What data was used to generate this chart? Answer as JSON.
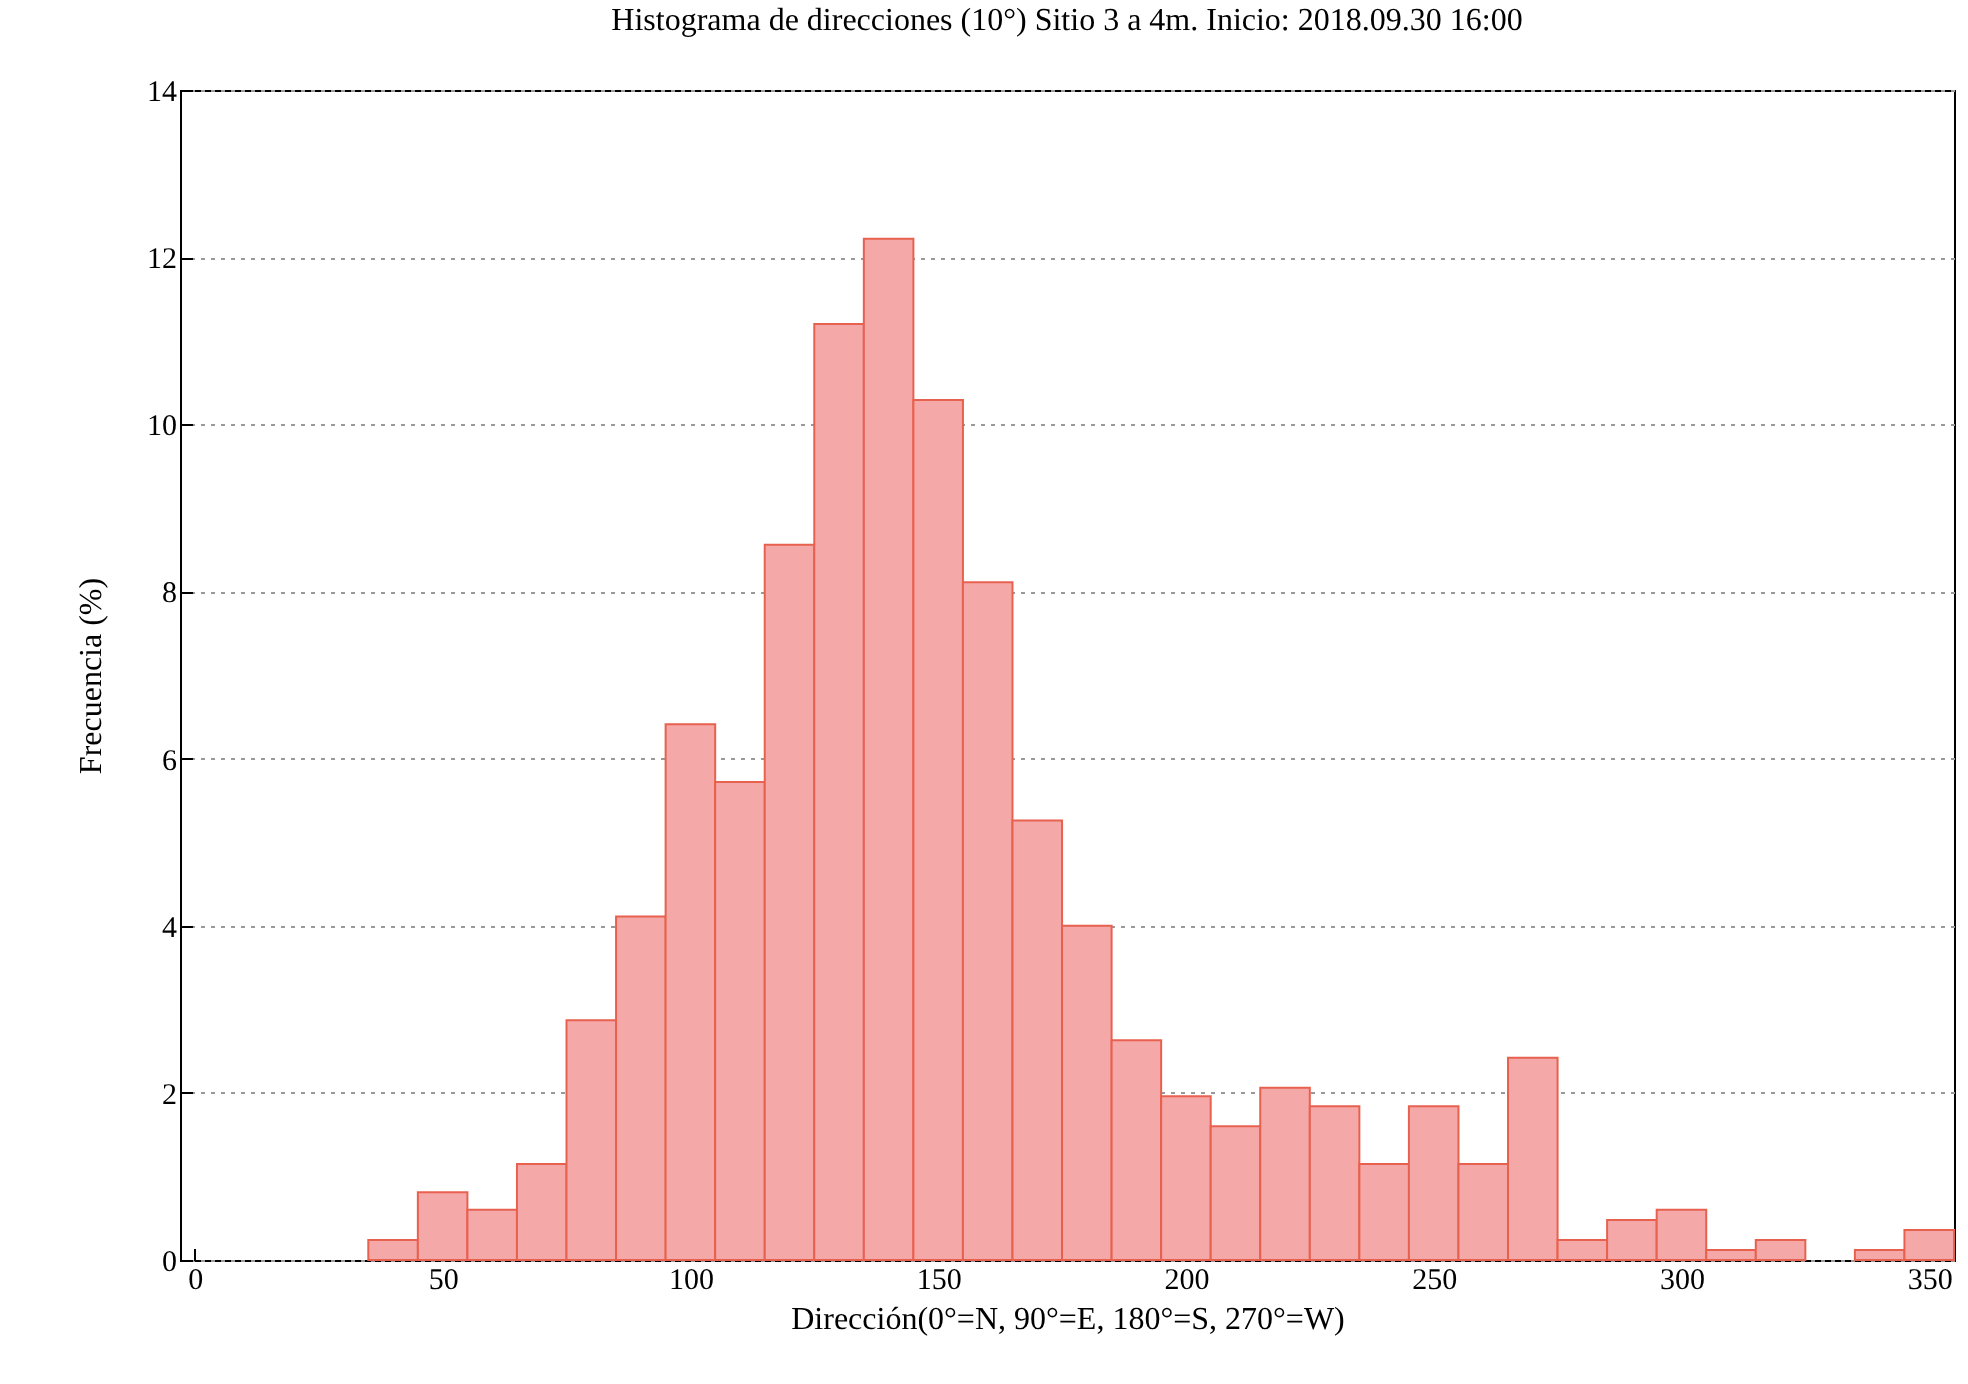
{
  "chart_data": {
    "type": "histogram",
    "title": "Histograma de direcciones (10°) Sitio 3 a 4m. Inicio: 2018.09.30 16:00",
    "xlabel": "Dirección(0°=N, 90°=E, 180°=S, 270°=W)",
    "ylabel": "Frecuencia (%)",
    "bins": [
      35,
      45,
      55,
      65,
      75,
      85,
      95,
      105,
      115,
      125,
      135,
      145,
      155,
      165,
      175,
      185,
      195,
      205,
      215,
      225,
      235,
      245,
      255,
      265,
      275,
      285,
      295,
      305,
      315,
      325,
      335,
      345,
      355
    ],
    "values": [
      0.24,
      0.81,
      0.6,
      1.15,
      2.87,
      4.11,
      6.41,
      5.72,
      8.56,
      11.2,
      12.22,
      10.29,
      8.11,
      5.26,
      4.0,
      2.63,
      1.96,
      1.6,
      2.06,
      1.84,
      1.15,
      1.84,
      1.15,
      2.42,
      0.24,
      0.48,
      0.6,
      0.12,
      0.24,
      0,
      0.12,
      0.36
    ],
    "color": "#f4a9a8",
    "xlim": [
      -3,
      355
    ],
    "ylim": [
      0,
      14
    ],
    "xticks": [
      0,
      50,
      100,
      150,
      200,
      250,
      300,
      350
    ],
    "yticks": [
      0,
      2,
      4,
      6,
      8,
      10,
      12,
      14
    ],
    "grid": "y"
  }
}
